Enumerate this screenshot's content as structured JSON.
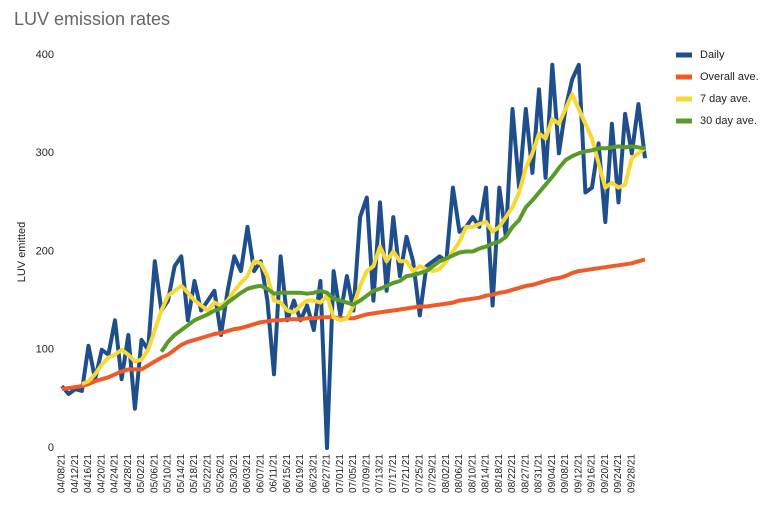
{
  "chart_data": {
    "type": "line",
    "title": "LUV emission rates",
    "y_label": "LUV emitted",
    "categories": [
      "04/08/21",
      null,
      "04/12/21",
      null,
      "04/16/21",
      null,
      "04/20/21",
      null,
      "04/24/21",
      null,
      "04/28/21",
      null,
      "05/02/21",
      null,
      "05/06/21",
      null,
      "05/10/21",
      null,
      "05/14/21",
      null,
      "05/18/21",
      null,
      "05/22/21",
      null,
      "05/26/21",
      null,
      "05/30/21",
      null,
      "06/03/21",
      null,
      "06/07/21",
      null,
      "06/11/21",
      null,
      "06/15/21",
      null,
      "06/19/21",
      null,
      "06/23/21",
      null,
      "06/27/21",
      null,
      "07/01/21",
      null,
      "07/05/21",
      null,
      "07/09/21",
      null,
      "07/13/21",
      null,
      "07/17/21",
      null,
      "07/21/21",
      null,
      "07/25/21",
      null,
      "07/29/21",
      null,
      "08/02/21",
      null,
      "08/06/21",
      null,
      "08/10/21",
      null,
      "08/14/21",
      null,
      "08/18/21",
      null,
      "08/22/21",
      null,
      "08/27/21",
      null,
      "08/31/21",
      null,
      "09/04/21",
      null,
      "09/08/21",
      null,
      "09/12/21",
      null,
      "09/16/21",
      null,
      "09/20/21",
      null,
      "09/24/21",
      null,
      "09/28/21",
      null,
      null
    ],
    "series": [
      {
        "name": "Daily",
        "color": "#1f4e8c",
        "width": 4,
        "values": [
          63,
          55,
          60,
          58,
          104,
          70,
          100,
          95,
          130,
          70,
          115,
          40,
          110,
          100,
          190,
          140,
          150,
          185,
          195,
          130,
          170,
          140,
          150,
          160,
          115,
          160,
          195,
          180,
          225,
          180,
          190,
          150,
          75,
          195,
          130,
          150,
          130,
          145,
          120,
          170,
          0,
          180,
          135,
          175,
          140,
          235,
          255,
          150,
          250,
          160,
          235,
          175,
          215,
          190,
          135,
          185,
          190,
          195,
          190,
          265,
          220,
          225,
          235,
          225,
          265,
          145,
          265,
          215,
          345,
          265,
          345,
          280,
          365,
          275,
          390,
          300,
          345,
          375,
          390,
          260,
          265,
          310,
          230,
          330,
          250,
          340,
          300,
          350,
          295
        ]
      },
      {
        "name": "Overall ave.",
        "color": "#f05a28",
        "width": 4,
        "values": [
          60,
          61,
          62,
          63,
          65,
          68,
          70,
          72,
          75,
          78,
          80,
          80,
          80,
          84,
          88,
          92,
          95,
          100,
          105,
          108,
          110,
          112,
          114,
          116,
          117,
          119,
          121,
          122,
          124,
          126,
          128,
          129,
          130,
          130,
          131,
          131,
          131,
          132,
          132,
          133,
          133,
          133,
          132,
          132,
          132,
          134,
          136,
          137,
          138,
          139,
          140,
          141,
          142,
          143,
          144,
          144,
          145,
          146,
          147,
          148,
          150,
          151,
          152,
          153,
          155,
          156,
          158,
          159,
          161,
          163,
          165,
          166,
          168,
          170,
          172,
          173,
          175,
          178,
          180,
          181,
          182,
          183,
          184,
          185,
          186,
          187,
          188,
          190,
          192
        ]
      },
      {
        "name": "7 day ave.",
        "color": "#f6d936",
        "width": 4,
        "values": [
          null,
          null,
          null,
          65,
          68,
          75,
          85,
          92,
          95,
          100,
          95,
          88,
          90,
          100,
          120,
          140,
          155,
          160,
          165,
          158,
          150,
          145,
          140,
          148,
          145,
          150,
          160,
          168,
          175,
          190,
          188,
          175,
          150,
          148,
          140,
          138,
          145,
          150,
          150,
          148,
          155,
          133,
          130,
          132,
          145,
          165,
          180,
          185,
          205,
          190,
          200,
          190,
          190,
          180,
          185,
          182,
          180,
          182,
          190,
          200,
          210,
          225,
          225,
          228,
          230,
          220,
          225,
          235,
          245,
          260,
          285,
          300,
          320,
          315,
          335,
          330,
          345,
          360,
          345,
          330,
          315,
          290,
          265,
          270,
          265,
          268,
          295,
          300,
          305
        ]
      },
      {
        "name": "30 day ave.",
        "color": "#5a9a2a",
        "width": 4,
        "values": [
          null,
          null,
          null,
          null,
          null,
          null,
          null,
          null,
          null,
          null,
          null,
          null,
          null,
          null,
          null,
          98,
          108,
          115,
          120,
          125,
          130,
          133,
          136,
          140,
          142,
          148,
          153,
          158,
          162,
          164,
          165,
          162,
          157,
          158,
          158,
          158,
          158,
          157,
          158,
          160,
          158,
          152,
          150,
          148,
          146,
          150,
          155,
          160,
          162,
          165,
          168,
          170,
          175,
          176,
          178,
          180,
          185,
          190,
          193,
          196,
          199,
          200,
          200,
          203,
          205,
          208,
          210,
          215,
          225,
          232,
          245,
          252,
          260,
          268,
          276,
          285,
          293,
          297,
          300,
          302,
          303,
          305,
          305,
          306,
          307,
          306,
          307,
          306,
          305
        ]
      }
    ],
    "ylim": [
      0,
      400
    ],
    "yticks": [
      0,
      100,
      200,
      300,
      400
    ],
    "grid": false,
    "legend": "right"
  }
}
